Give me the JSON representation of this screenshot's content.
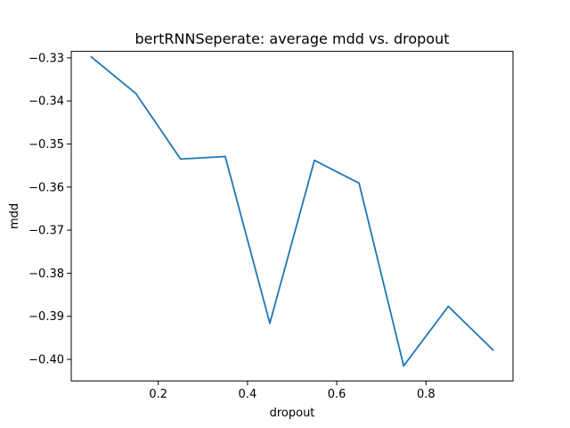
{
  "chart_data": {
    "type": "line",
    "title": "bertRNNSeperate: average mdd vs. dropout",
    "xlabel": "dropout",
    "ylabel": "mdd",
    "xlim": [
      0.005,
      0.995
    ],
    "ylim": [
      -0.405,
      -0.3285
    ],
    "xticks": [
      0.2,
      0.4,
      0.6,
      0.8
    ],
    "xtick_labels": [
      "0.2",
      "0.4",
      "0.6",
      "0.8"
    ],
    "yticks": [
      -0.4,
      -0.39,
      -0.38,
      -0.37,
      -0.36,
      -0.35,
      -0.34,
      -0.33
    ],
    "ytick_labels": [
      "−0.40",
      "−0.39",
      "−0.38",
      "−0.37",
      "−0.36",
      "−0.35",
      "−0.34",
      "−0.33"
    ],
    "grid": false,
    "series": [
      {
        "color": "#1f77b4",
        "x": [
          0.05,
          0.15,
          0.25,
          0.35,
          0.45,
          0.55,
          0.65,
          0.75,
          0.85,
          0.95
        ],
        "y": [
          -0.3298,
          -0.3383,
          -0.3535,
          -0.3529,
          -0.3916,
          -0.3538,
          -0.3591,
          -0.4015,
          -0.3877,
          -0.3978
        ]
      }
    ]
  }
}
